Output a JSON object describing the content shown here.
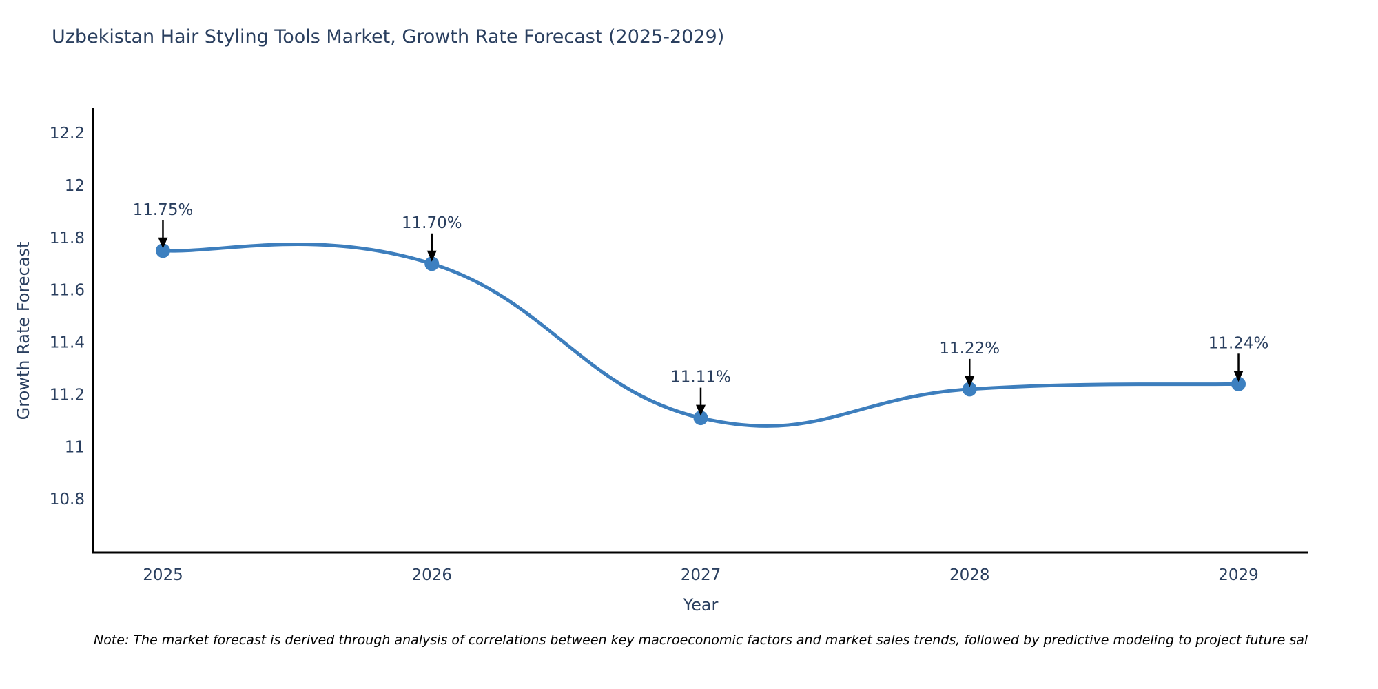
{
  "title": "Uzbekistan Hair Styling Tools Market, Growth Rate Forecast (2025-2029)",
  "note": "Note: The market forecast is derived through analysis of correlations between key macroeconomic factors and market sales trends, followed by predictive modeling to project future sal",
  "chart_data": {
    "type": "line",
    "title": "Uzbekistan Hair Styling Tools Market, Growth Rate Forecast (2025-2029)",
    "xlabel": "Year",
    "ylabel": "Growth Rate Forecast",
    "x": [
      2025,
      2026,
      2027,
      2028,
      2029
    ],
    "xtick_labels": [
      "2025",
      "2026",
      "2027",
      "2028",
      "2029"
    ],
    "series": [
      {
        "name": "Growth Rate Forecast",
        "values": [
          11.75,
          11.7,
          11.11,
          11.22,
          11.24
        ]
      }
    ],
    "point_labels": [
      "11.75%",
      "11.70%",
      "11.11%",
      "11.22%",
      "11.24%"
    ],
    "yticks": [
      10.8,
      11,
      11.2,
      11.4,
      11.6,
      11.8,
      12,
      12.2
    ],
    "ytick_labels": [
      "10.8",
      "11",
      "11.2",
      "11.4",
      "11.6",
      "11.8",
      "12",
      "12.2"
    ],
    "xlim": [
      2024.74,
      2029.26
    ],
    "ylim": [
      10.595,
      12.295
    ],
    "grid": false,
    "legend": "none",
    "line_shape": "spline",
    "colors": {
      "line": "#3d7ebd",
      "marker": "#3d80c0",
      "axis": "#000000",
      "chart_text": "#2a3f5f",
      "annotation_arrow": "#000000",
      "note_text": "#000000"
    }
  }
}
